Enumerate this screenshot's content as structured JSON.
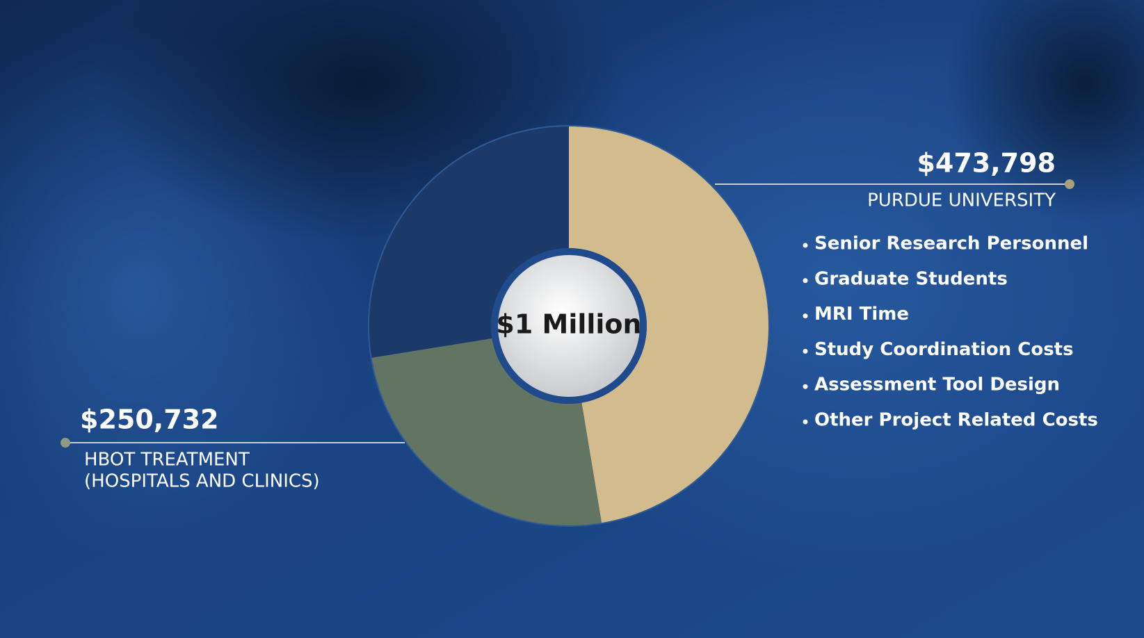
{
  "chart_data": {
    "type": "pie",
    "donut": true,
    "center_label": "$1 Million",
    "categories": [
      "PURDUE UNIVERSITY",
      "HBOT TREATMENT",
      null
    ],
    "category_sublabels": [
      null,
      "(HOSPITALS AND CLINICS)",
      null
    ],
    "values": [
      473798,
      250732,
      275470
    ],
    "value_labels": [
      "$473,798",
      "$250,732",
      null
    ],
    "colors": [
      "#d2bb8d",
      "#627462",
      "#1c3a69"
    ],
    "purdue_items": [
      "Senior Research Personnel",
      "Graduate Students",
      "MRI Time",
      "Study Coordination Costs",
      "Assessment Tool Design",
      "Other Project Related Costs"
    ]
  }
}
